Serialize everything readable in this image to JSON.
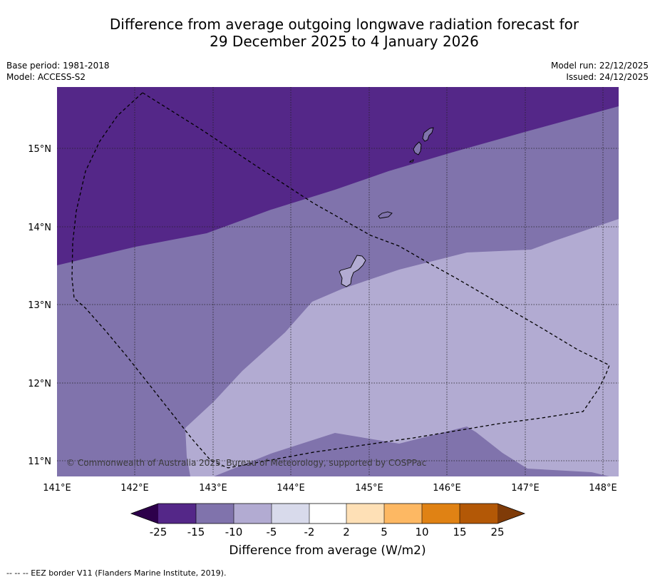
{
  "title": {
    "line1": "Difference from average outgoing longwave radiation forecast for",
    "line2": "29 December 2025 to 4 January 2026"
  },
  "meta_left": {
    "base_period": "Base period: 1981-2018",
    "model": "Model: ACCESS-S2"
  },
  "meta_right": {
    "model_run": "Model run: 22/12/2025",
    "issued": "Issued: 24/12/2025"
  },
  "map": {
    "lat_labels": [
      "15°N",
      "14°N",
      "13°N",
      "12°N",
      "11°N"
    ],
    "lon_labels": [
      "141°E",
      "142°E",
      "143°E",
      "144°E",
      "145°E",
      "146°E",
      "147°E",
      "148°E"
    ],
    "copyright": "© Commonwealth of Australia 2025, Bureau of Meteorology, supported by COSPPac"
  },
  "colorbar": {
    "tick_labels": [
      "-25",
      "-15",
      "-10",
      "-5",
      "-2",
      "2",
      "5",
      "10",
      "15",
      "25"
    ],
    "colors": [
      "#2d004b",
      "#542788",
      "#8073ac",
      "#b2abd2",
      "#d8daeb",
      "#ffffff",
      "#fee0b6",
      "#fdb863",
      "#e08214",
      "#b35806",
      "#7f3b08"
    ],
    "label": "Difference from average (W/m2)"
  },
  "legend": {
    "footnote": "--  --  -- EEZ border V11 (Flanders Marine Institute, 2019)."
  }
}
